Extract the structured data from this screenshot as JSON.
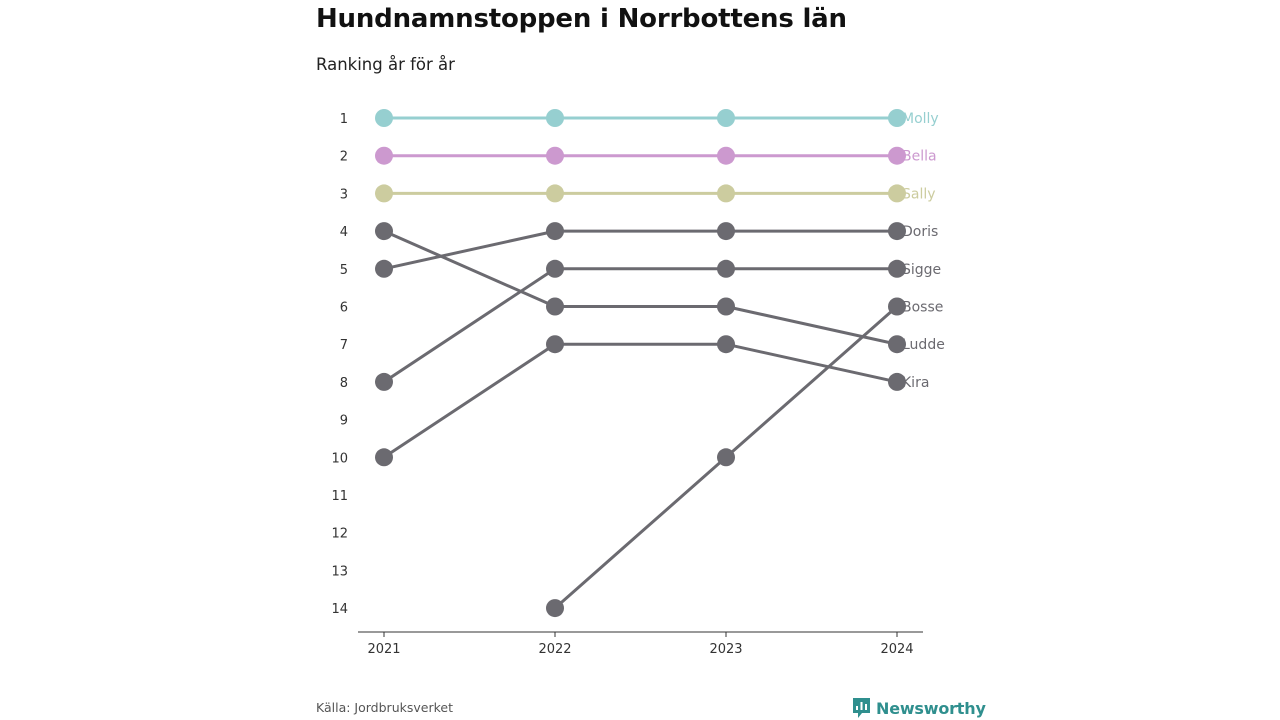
{
  "title": "Hundnamnstoppen i Norrbottens län",
  "subtitle": "Ranking år för år",
  "source": "Källa: Jordbruksverket",
  "brand": {
    "name": "Newsworthy",
    "icon": "newsworthy-logo-icon",
    "color": "#2f8f8e"
  },
  "chart_data": {
    "type": "line",
    "x": [
      "2021",
      "2022",
      "2023",
      "2024"
    ],
    "y_ticks": [
      1,
      2,
      3,
      4,
      5,
      6,
      7,
      8,
      9,
      10,
      11,
      12,
      13,
      14
    ],
    "ylim": [
      1,
      14
    ],
    "y_inverted": true,
    "grid": false,
    "series": [
      {
        "name": "Molly",
        "values": [
          1,
          1,
          1,
          1
        ],
        "color": "#96cfd0"
      },
      {
        "name": "Bella",
        "values": [
          2,
          2,
          2,
          2
        ],
        "color": "#cc99cf"
      },
      {
        "name": "Sally",
        "values": [
          3,
          3,
          3,
          3
        ],
        "color": "#cccc9f"
      },
      {
        "name": "Doris",
        "values": [
          5,
          4,
          4,
          4
        ],
        "color": "#6b6a70"
      },
      {
        "name": "Sigge",
        "values": [
          8,
          5,
          5,
          5
        ],
        "color": "#6b6a70"
      },
      {
        "name": "Bosse",
        "values": [
          null,
          14,
          10,
          6
        ],
        "color": "#6b6a70"
      },
      {
        "name": "Ludde",
        "values": [
          4,
          6,
          6,
          7
        ],
        "color": "#6b6a70"
      },
      {
        "name": "Kira",
        "values": [
          10,
          7,
          7,
          8
        ],
        "color": "#6b6a70"
      }
    ]
  }
}
